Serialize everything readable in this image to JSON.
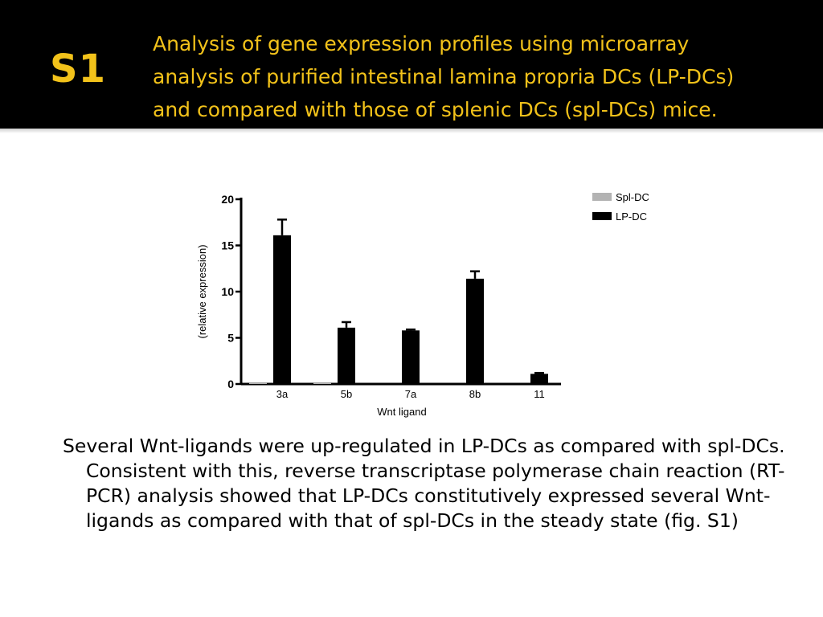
{
  "slide": {
    "number": "S1",
    "title": "Analysis of gene expression profiles using microarray\nanalysis of purified intestinal lamina propria DCs (LP-DCs)\nand compared  with those of splenic DCs (spl-DCs) mice.",
    "body": "Several Wnt-ligands were up-regulated in LP-DCs as compared with spl-DCs. Consistent with this, reverse transcriptase polymerase chain reaction (RT-PCR) analysis showed that LP-DCs constitutively expressed several Wnt-ligands as compared with that of spl-DCs in the steady state (fig. S1)"
  },
  "colors": {
    "header_bg": "#000000",
    "title_text": "#f2c21a",
    "spl_dc": "#b3b3b3",
    "lp_dc": "#000000"
  },
  "chart_data": {
    "type": "bar",
    "title": "",
    "xlabel": "Wnt ligand",
    "ylabel": "(relative expression)",
    "ylim": [
      0,
      20
    ],
    "yticks": [
      0,
      5,
      10,
      15,
      20
    ],
    "categories": [
      "3a",
      "5b",
      "7a",
      "8b",
      "11"
    ],
    "series": [
      {
        "name": "Spl-DC",
        "values": [
          0.1,
          0.1,
          0,
          0,
          0
        ],
        "errors": [
          0,
          0,
          0,
          0,
          0
        ]
      },
      {
        "name": "LP-DC",
        "values": [
          16.1,
          6.1,
          5.8,
          11.4,
          1.1
        ],
        "errors": [
          1.7,
          0.6,
          0.1,
          0.8,
          0.1
        ]
      }
    ],
    "legend_position": "top-right",
    "grid": false
  }
}
